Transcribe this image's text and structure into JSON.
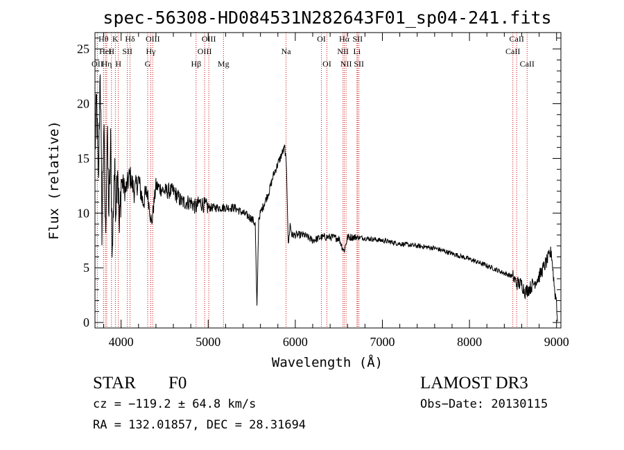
{
  "chart_data": {
    "type": "line",
    "title": "spec-56308-HD084531N282643F01_sp04-241.fits",
    "xlabel": "Wavelength (Å)",
    "ylabel": "Flux (relative)",
    "xlim": [
      3700,
      9050
    ],
    "ylim": [
      -0.5,
      26.5
    ],
    "xticks": [
      4000,
      5000,
      6000,
      7000,
      8000,
      9000
    ],
    "yticks": [
      0,
      5,
      10,
      15,
      20,
      25
    ],
    "line_color": "#000000",
    "marker_color": "#cc0000",
    "spectrum": {
      "x": [
        3700,
        3720,
        3740,
        3760,
        3780,
        3800,
        3820,
        3840,
        3860,
        3880,
        3900,
        3920,
        3940,
        3960,
        3980,
        4000,
        4050,
        4100,
        4150,
        4200,
        4250,
        4300,
        4350,
        4400,
        4500,
        4600,
        4700,
        4800,
        4860,
        4900,
        5000,
        5100,
        5200,
        5300,
        5400,
        5500,
        5540,
        5560,
        5580,
        5600,
        5650,
        5700,
        5750,
        5800,
        5850,
        5880,
        5900,
        5920,
        5940,
        5960,
        6000,
        6100,
        6200,
        6300,
        6400,
        6500,
        6560,
        6600,
        6700,
        6800,
        7000,
        7200,
        7400,
        7600,
        7800,
        8000,
        8200,
        8400,
        8500,
        8540,
        8600,
        8640,
        8700,
        8800,
        8900,
        8940,
        8980,
        9000,
        9010
      ],
      "y": [
        16,
        20,
        12,
        24,
        9,
        18,
        8,
        17,
        10,
        16,
        6,
        14,
        11,
        15,
        8,
        13,
        12,
        13.5,
        12,
        13,
        11,
        12,
        9,
        12.5,
        12,
        12,
        11,
        11,
        10.5,
        11,
        10.5,
        10.5,
        10.5,
        10.5,
        10,
        9.5,
        9,
        1.2,
        9.5,
        10,
        11,
        12,
        13.5,
        14.5,
        15.5,
        16,
        14,
        7,
        9,
        8,
        8,
        8,
        7.5,
        7.8,
        7.8,
        7.7,
        6.5,
        7.8,
        7.8,
        7.7,
        7.5,
        7.2,
        7,
        6.8,
        6.3,
        5.8,
        5.2,
        4.5,
        4.2,
        3.6,
        3.5,
        2.8,
        3.2,
        4.2,
        5.8,
        6.5,
        2.8,
        2,
        0.1
      ]
    },
    "lines": [
      {
        "label": "Hθ",
        "wavelength": 3798,
        "row": 0
      },
      {
        "label": "OII",
        "wavelength": 3727,
        "row": 2
      },
      {
        "label": "HeI",
        "wavelength": 3820,
        "row": 1
      },
      {
        "label": "Hη",
        "wavelength": 3835,
        "row": 2
      },
      {
        "label": "H",
        "wavelength": 3889,
        "row": 1
      },
      {
        "label": "K",
        "wavelength": 3934,
        "row": 0
      },
      {
        "label": "H",
        "wavelength": 3968,
        "row": 2
      },
      {
        "label": "SII",
        "wavelength": 4072,
        "row": 1
      },
      {
        "label": "Hδ",
        "wavelength": 4102,
        "row": 0
      },
      {
        "label": "Hγ",
        "wavelength": 4341,
        "row": 1
      },
      {
        "label": "G",
        "wavelength": 4305,
        "row": 2
      },
      {
        "label": "OIII",
        "wavelength": 4363,
        "row": 0
      },
      {
        "label": "Hβ",
        "wavelength": 4861,
        "row": 2
      },
      {
        "label": "OIII",
        "wavelength": 4959,
        "row": 1
      },
      {
        "label": "OIII",
        "wavelength": 5007,
        "row": 0
      },
      {
        "label": "Mg",
        "wavelength": 5175,
        "row": 2
      },
      {
        "label": "Na",
        "wavelength": 5894,
        "row": 1
      },
      {
        "label": "OI",
        "wavelength": 6300,
        "row": 0
      },
      {
        "label": "OI",
        "wavelength": 6363,
        "row": 2
      },
      {
        "label": "NII",
        "wavelength": 6548,
        "row": 1
      },
      {
        "label": "Hα",
        "wavelength": 6563,
        "row": 0
      },
      {
        "label": "NII",
        "wavelength": 6583,
        "row": 2
      },
      {
        "label": "Li",
        "wavelength": 6708,
        "row": 1
      },
      {
        "label": "SII",
        "wavelength": 6716,
        "row": 0
      },
      {
        "label": "SII",
        "wavelength": 6731,
        "row": 2
      },
      {
        "label": "CaII",
        "wavelength": 8498,
        "row": 1
      },
      {
        "label": "CaII",
        "wavelength": 8542,
        "row": 0
      },
      {
        "label": "CaII",
        "wavelength": 8662,
        "row": 2
      }
    ]
  },
  "info": {
    "class": "STAR",
    "subclass": "F0",
    "survey": "LAMOST DR3",
    "cz": "cz = −119.2 ± 64.8 km/s",
    "obs_date": "Obs−Date: 20130115",
    "radec": "RA = 132.01857, DEC =  28.31694"
  }
}
